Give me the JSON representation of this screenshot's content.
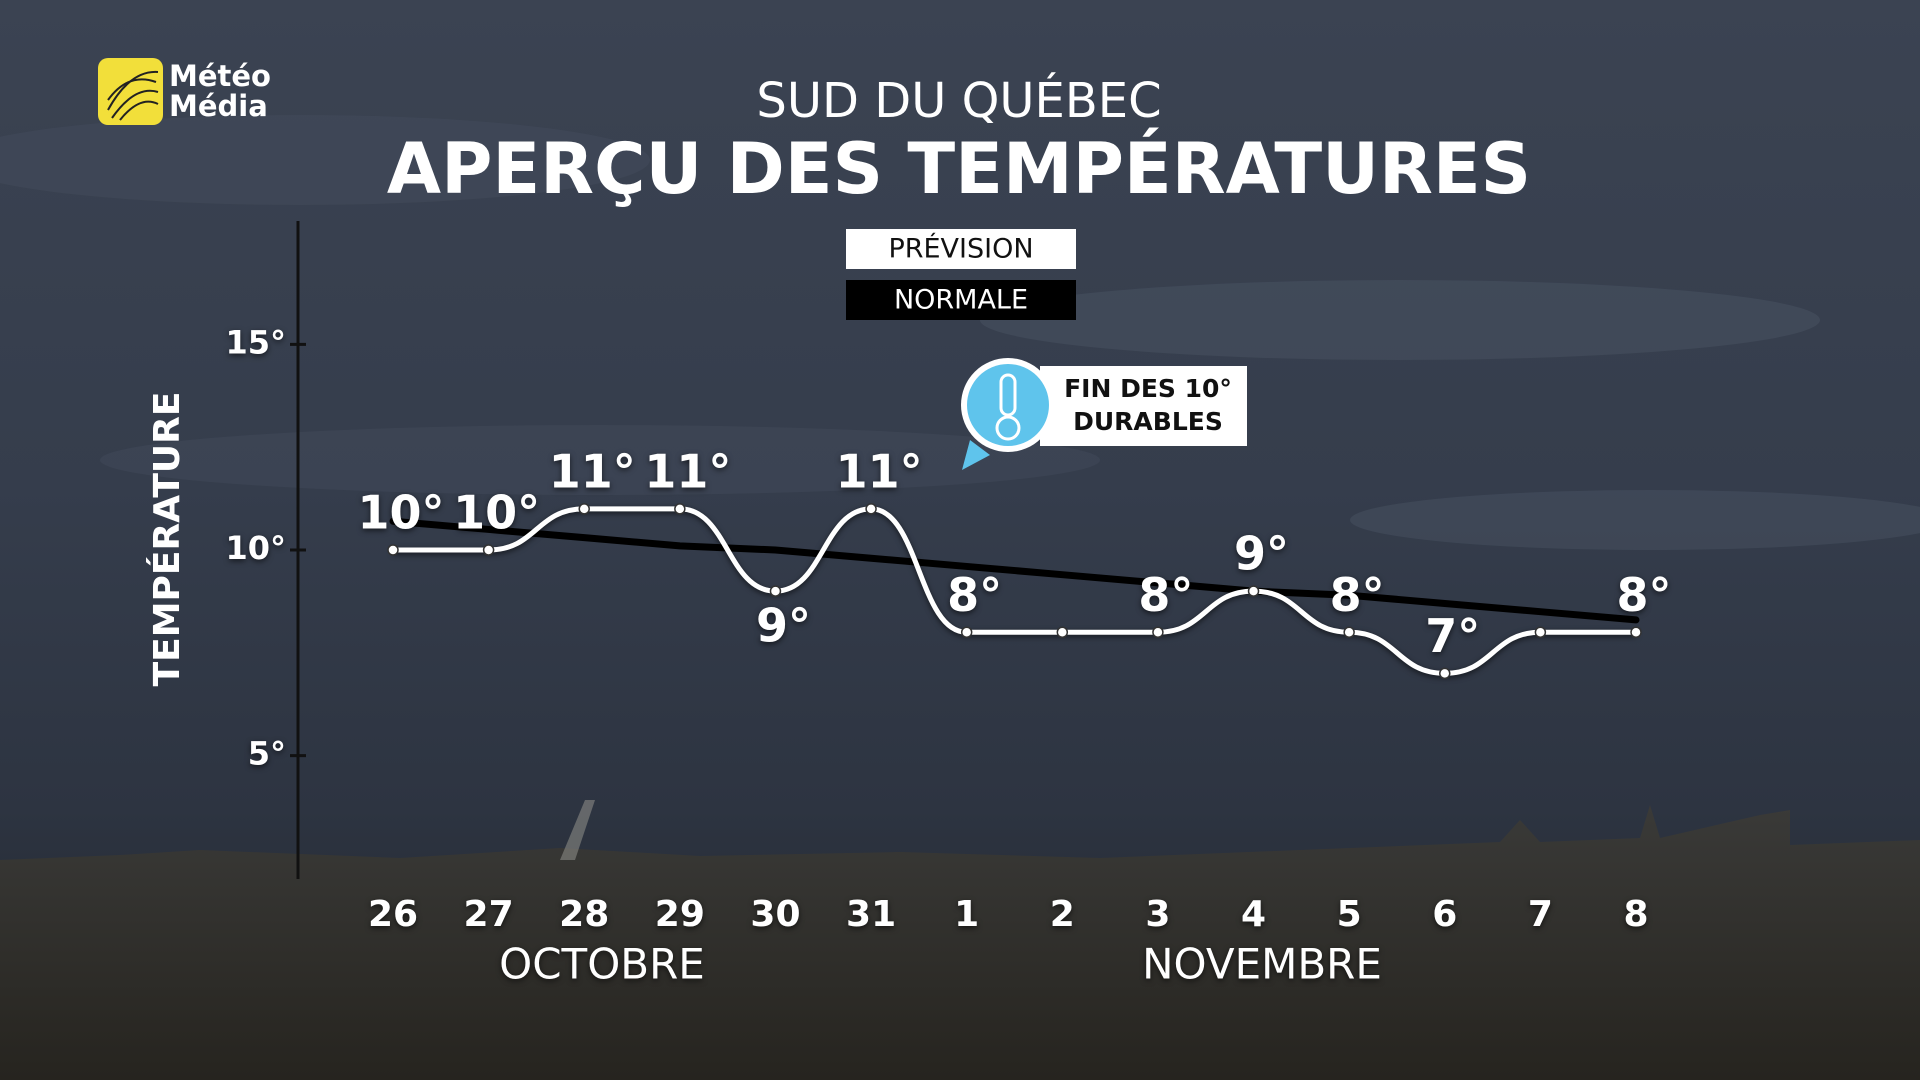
{
  "brand": {
    "line1": "Météo",
    "line2": "Média"
  },
  "chart_data": {
    "type": "line",
    "subtitle": "SUD DU QUÉBEC",
    "title": "APERÇU DES TEMPÉRATURES",
    "ylabel": "TEMPÉRATURE",
    "categories": [
      "26",
      "27",
      "28",
      "29",
      "30",
      "31",
      "1",
      "2",
      "3",
      "4",
      "5",
      "6",
      "7",
      "8"
    ],
    "months": [
      "OCTOBRE",
      "NOVEMBRE"
    ],
    "series": [
      {
        "name": "PRÉVISION",
        "color": "#ffffff",
        "values": [
          10,
          10,
          11,
          11,
          9,
          11,
          8,
          8,
          8,
          9,
          8,
          7,
          8,
          8
        ],
        "value_labels": [
          "10°",
          "10°",
          "11°",
          "11°",
          "9°",
          "11°",
          "8°",
          null,
          "8°",
          "9°",
          "8°",
          "7°",
          null,
          "8°"
        ]
      },
      {
        "name": "NORMALE",
        "color": "#000000",
        "values": [
          10.7,
          10.5,
          10.3,
          10.1,
          10.0,
          9.8,
          9.6,
          9.4,
          9.2,
          9.0,
          8.9,
          8.7,
          8.5,
          8.3
        ]
      }
    ],
    "ylim": [
      2,
      18
    ],
    "yticks": [
      {
        "value": 5,
        "label": "5°"
      },
      {
        "value": 10,
        "label": "10°"
      },
      {
        "value": 15,
        "label": "15°"
      }
    ],
    "annotation": [
      "FIN DES 10°",
      "DURABLES"
    ]
  }
}
